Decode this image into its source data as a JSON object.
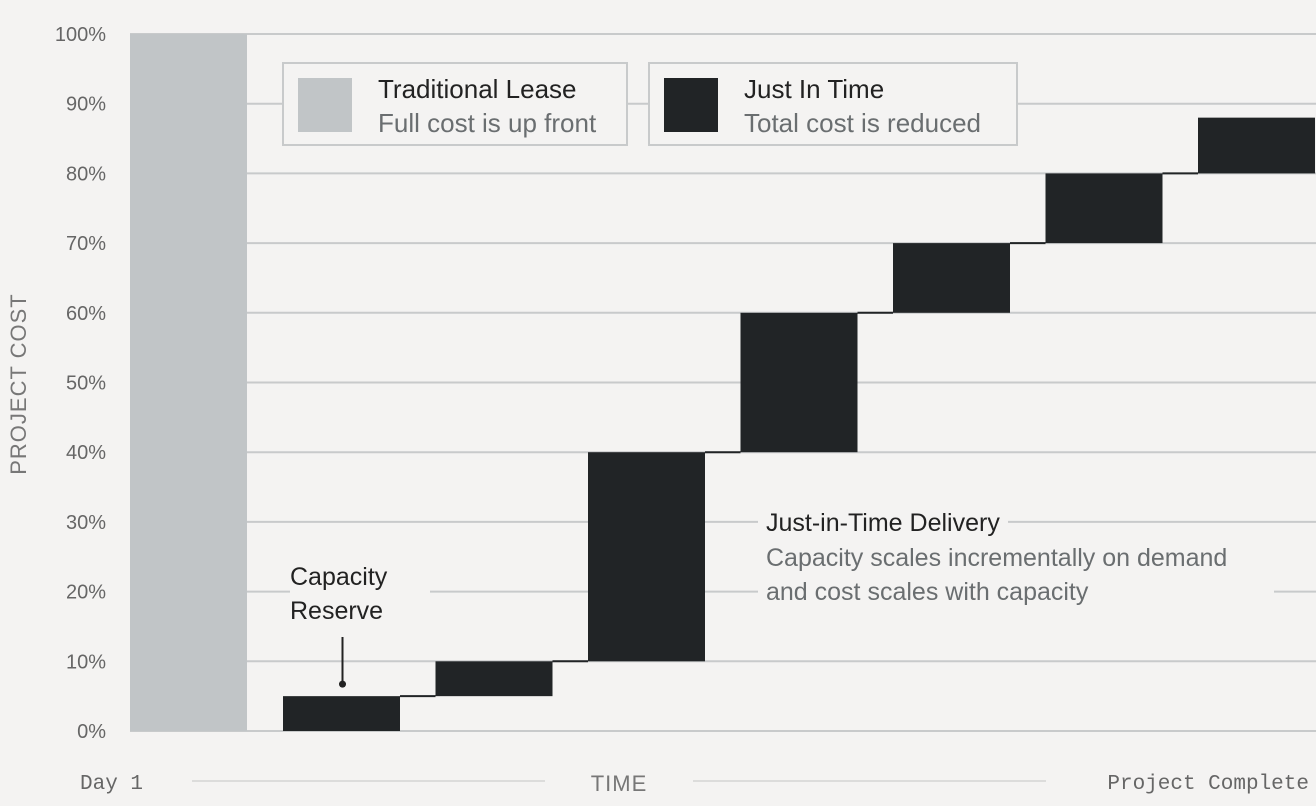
{
  "chart_data": {
    "type": "bar",
    "ylabel": "PROJECT COST",
    "xlabel": "TIME",
    "x_start_label": "Day 1",
    "x_end_label": "Project Complete",
    "ylim": [
      0,
      100
    ],
    "y_ticks": [
      "0%",
      "10%",
      "20%",
      "30%",
      "40%",
      "50%",
      "60%",
      "70%",
      "80%",
      "90%",
      "100%"
    ],
    "grid": true,
    "legend_position": "top",
    "legend": [
      {
        "name": "Traditional Lease",
        "description": "Full cost is up front",
        "color": "#c1c5c7"
      },
      {
        "name": "Just In Time",
        "description": "Total cost is reduced",
        "color": "#212426"
      }
    ],
    "series": [
      {
        "name": "Traditional Lease",
        "segments": [
          {
            "start": 0,
            "end": 100
          }
        ]
      },
      {
        "name": "Just In Time",
        "segments": [
          {
            "start": 0,
            "end": 5
          },
          {
            "start": 5,
            "end": 10
          },
          {
            "start": 10,
            "end": 40
          },
          {
            "start": 40,
            "end": 60
          },
          {
            "start": 60,
            "end": 70
          },
          {
            "start": 70,
            "end": 80
          },
          {
            "start": 80,
            "end": 88
          }
        ]
      }
    ],
    "annotations": [
      {
        "title": "Capacity Reserve"
      },
      {
        "title": "Just-in-Time Delivery",
        "text": "Capacity scales incrementally on demand and cost scales with capacity"
      }
    ]
  }
}
